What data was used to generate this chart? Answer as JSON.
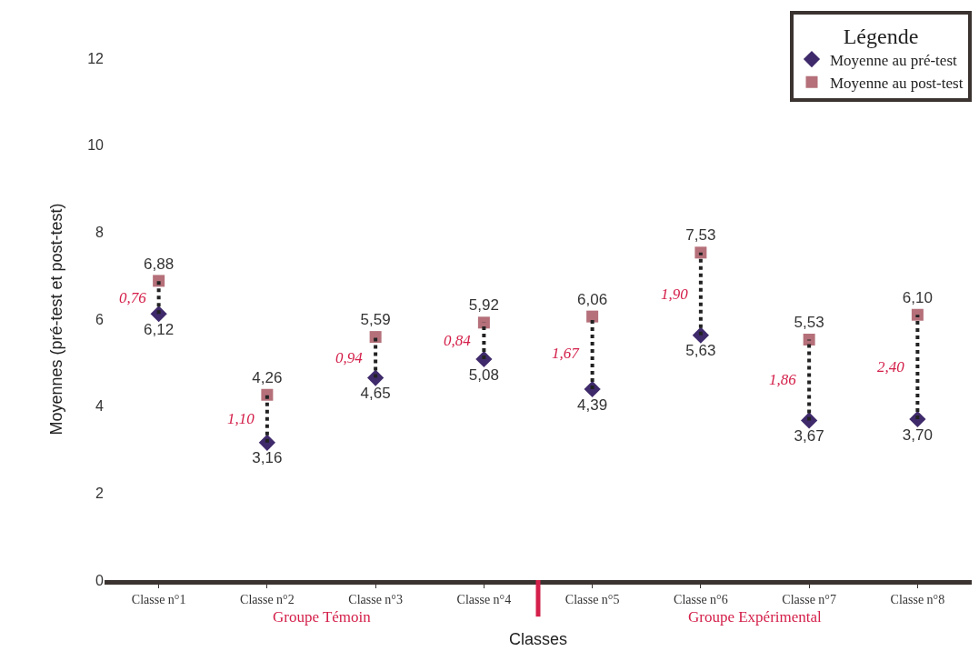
{
  "chart_data": {
    "type": "scatter",
    "xlabel": "Classes",
    "ylabel": "Moyennes (pré-test et post-test)",
    "legend_title": "Légende",
    "categories": [
      "Classe n°1",
      "Classe n°2",
      "Classe n°3",
      "Classe n°4",
      "Classe n°5",
      "Classe n°6",
      "Classe n°7",
      "Classe n°8"
    ],
    "series": [
      {
        "name": "Moyenne au pré-test",
        "color": "#3f2a6b",
        "marker": "diamond",
        "values": [
          6.12,
          3.16,
          4.65,
          5.08,
          4.39,
          5.63,
          3.67,
          3.7
        ],
        "value_labels": [
          "6,12",
          "3,16",
          "4,65",
          "5,08",
          "4,39",
          "5,63",
          "3,67",
          "3,70"
        ]
      },
      {
        "name": "Moyenne au post-test",
        "color": "#b5707a",
        "marker": "square",
        "values": [
          6.88,
          4.26,
          5.59,
          5.92,
          6.06,
          7.53,
          5.53,
          6.1
        ],
        "value_labels": [
          "6,88",
          "4,26",
          "5,59",
          "5,92",
          "6,06",
          "7,53",
          "5,53",
          "6,10"
        ]
      }
    ],
    "ylim": [
      0,
      12
    ],
    "yticks": [
      0,
      2,
      4,
      6,
      8,
      10,
      12
    ],
    "grid": false,
    "legend": "top right",
    "annotations": [
      "0,76",
      "1,10",
      "0,94",
      "0,84",
      "1,67",
      "1,90",
      "1,86",
      "2,40",
      "Groupe Témoin",
      "Groupe Expérimental"
    ]
  }
}
